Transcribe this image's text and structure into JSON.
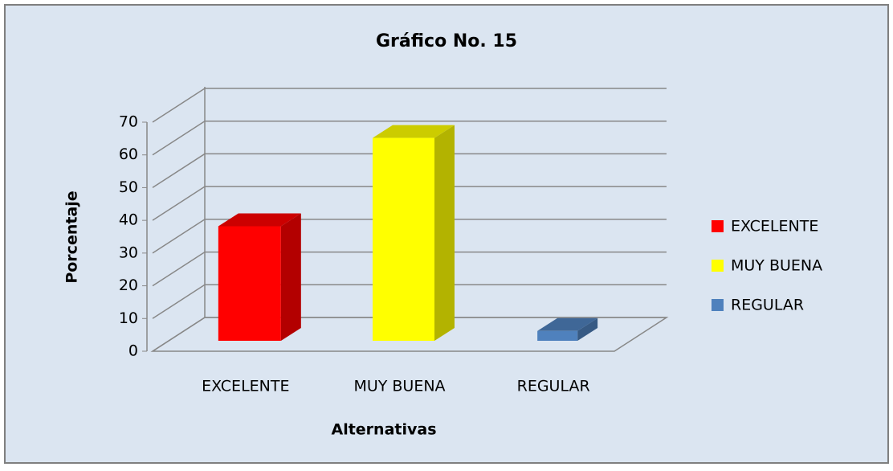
{
  "chart_data": {
    "type": "bar3d",
    "title": "Gráfico No. 15",
    "x_label": "Alternativas",
    "y_label": "Porcentaje",
    "categories": [
      "EXCELENTE",
      "MUY BUENA",
      "REGULAR"
    ],
    "values": [
      35,
      62,
      3
    ],
    "colors": [
      "#ff0000",
      "#ffff00",
      "#4f81bd"
    ],
    "ylim": [
      0,
      70
    ],
    "yticks": [
      0,
      10,
      20,
      30,
      40,
      50,
      60,
      70
    ],
    "grid": true,
    "legend": "right"
  }
}
